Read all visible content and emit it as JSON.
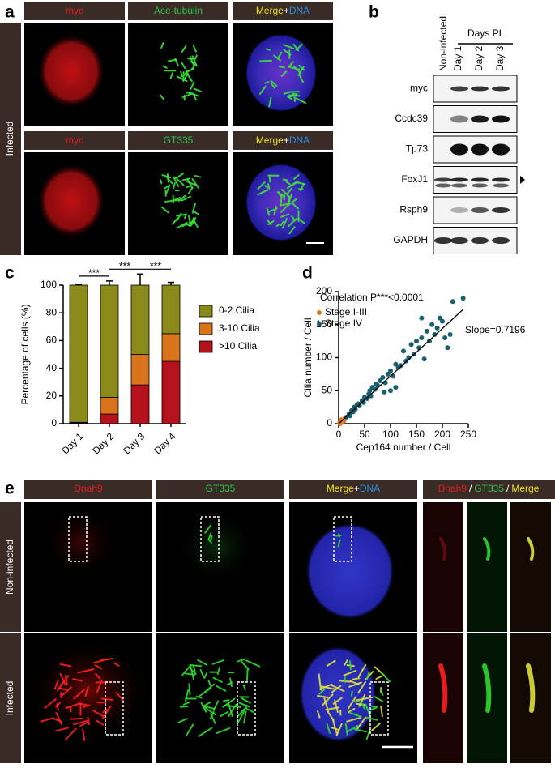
{
  "panel_a": {
    "label": "a",
    "side_label": "Infected",
    "rows": [
      {
        "stain1": "myc",
        "stain2": "Ace-tubulin",
        "merge": "Merge",
        "plus": "+",
        "dna": "DNA"
      },
      {
        "stain1": "myc",
        "stain2": "GT335",
        "merge": "Merge",
        "plus": "+",
        "dna": "DNA"
      }
    ]
  },
  "panel_b": {
    "label": "b",
    "lanes": [
      "Non-infected",
      "Day 1",
      "Day 2",
      "Day 3"
    ],
    "group_label": "Days PI",
    "rows": [
      "myc",
      "Ccdc39",
      "Tp73",
      "FoxJ1",
      "Rsph9",
      "GAPDH"
    ]
  },
  "chart_data": [
    {
      "type": "bar",
      "stacked": true,
      "label": "c",
      "ylabel": "Percentage of cells (%)",
      "categories": [
        "Day 1",
        "Day 2",
        "Day 3",
        "Day 4"
      ],
      "ylim": [
        0,
        100
      ],
      "yticks": [
        0,
        20,
        40,
        60,
        80,
        100
      ],
      "significance": [
        "***",
        "***",
        "***"
      ],
      "series": [
        {
          "name": ">10 Cilia",
          "color": "#b5121b",
          "values": [
            0.5,
            7,
            28,
            45
          ],
          "errors": [
            0,
            0,
            1,
            1
          ]
        },
        {
          "name": "3-10 Cilia",
          "color": "#d9741c",
          "values": [
            0.5,
            12,
            22,
            20
          ],
          "errors": [
            0,
            3,
            8,
            2
          ]
        },
        {
          "name": "0-2 Cilia",
          "color": "#8a8a1a",
          "values": [
            99,
            81,
            50,
            35
          ],
          "errors": [
            0.5,
            3,
            8,
            2
          ]
        }
      ]
    },
    {
      "type": "scatter",
      "label": "d",
      "annotation": "Correlation P***<0.0001",
      "slope_label": "Slope=0.7196",
      "xlabel": "Cep164 number / Cell",
      "ylabel": "Cilia number / Cell",
      "xlim": [
        0,
        250
      ],
      "ylim": [
        0,
        200
      ],
      "xticks": [
        0,
        50,
        100,
        150,
        200,
        250
      ],
      "yticks": [
        0,
        50,
        100,
        150,
        200
      ],
      "fit": {
        "x": [
          0,
          240
        ],
        "values": [
          0,
          173
        ]
      },
      "series": [
        {
          "name": "Stage I-III",
          "color": "#e07b1f",
          "x": [
            2,
            4,
            6,
            8,
            10,
            3,
            12,
            5
          ],
          "values": [
            1,
            3,
            2,
            5,
            4,
            0,
            8,
            6
          ]
        },
        {
          "name": "Stage IV",
          "color": "#1a5f6e",
          "x": [
            15,
            20,
            22,
            25,
            28,
            30,
            32,
            35,
            38,
            40,
            45,
            48,
            50,
            55,
            58,
            60,
            62,
            65,
            70,
            72,
            75,
            80,
            85,
            88,
            90,
            95,
            100,
            105,
            110,
            115,
            120,
            125,
            130,
            135,
            140,
            145,
            150,
            155,
            160,
            165,
            170,
            175,
            180,
            185,
            190,
            195,
            200,
            205,
            210,
            215,
            220,
            240,
            160,
            110,
            100
          ],
          "values": [
            10,
            15,
            12,
            20,
            18,
            25,
            22,
            28,
            30,
            27,
            35,
            32,
            40,
            38,
            45,
            50,
            42,
            55,
            52,
            60,
            58,
            65,
            70,
            48,
            62,
            75,
            80,
            72,
            90,
            85,
            88,
            110,
            95,
            100,
            120,
            105,
            125,
            115,
            130,
            98,
            140,
            125,
            150,
            135,
            145,
            160,
            155,
            130,
            115,
            135,
            185,
            190,
            160,
            55,
            50
          ]
        }
      ]
    }
  ],
  "panel_e": {
    "label": "e",
    "headers": {
      "stain1": "Dnah9",
      "stain2": "GT335",
      "merge": "Merge",
      "plus": "+",
      "dna": "DNA",
      "zoom": [
        "Dnah9",
        "/",
        "GT335",
        "/",
        "Merge"
      ]
    },
    "rows": [
      "Non-infected",
      "Infected"
    ]
  }
}
